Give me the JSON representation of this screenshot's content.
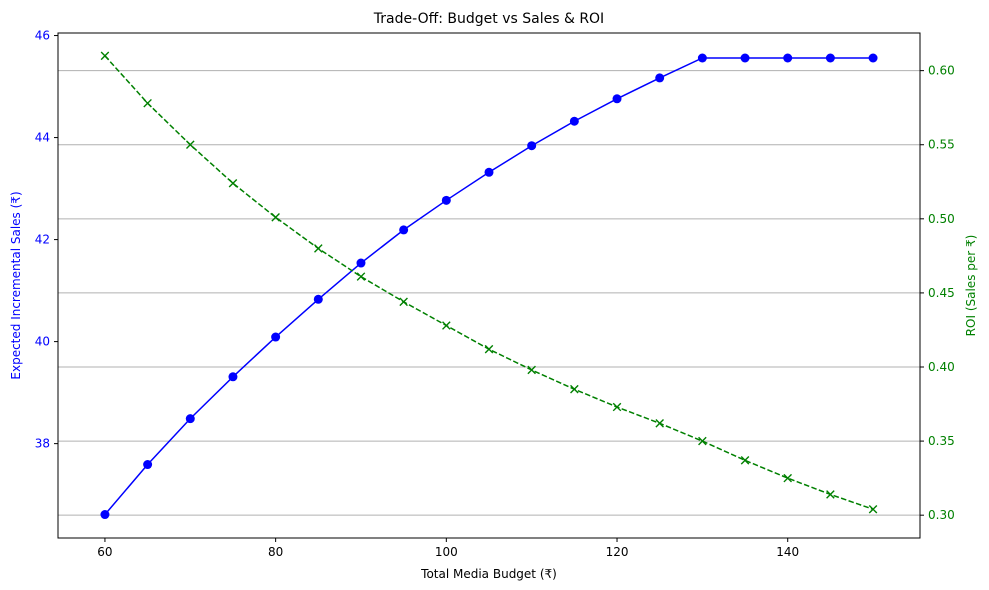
{
  "chart_data": {
    "type": "line",
    "title": "Trade-Off: Budget vs Sales & ROI",
    "xlabel": "Total Media Budget (₹)",
    "ylabel_left": "Expected Incremental Sales (₹)",
    "ylabel_right": "ROI (Sales per ₹)",
    "x": [
      60,
      65,
      70,
      75,
      80,
      85,
      90,
      95,
      100,
      105,
      110,
      115,
      120,
      125,
      130,
      135,
      140,
      145,
      150
    ],
    "xlim": [
      54.5,
      155.5
    ],
    "ylim_left": [
      36.15,
      46.05
    ],
    "ylim_right": [
      0.2846,
      0.6254
    ],
    "x_ticks": [
      60,
      80,
      100,
      120,
      140
    ],
    "y_left_ticks": [
      38,
      40,
      42,
      44,
      46
    ],
    "y_right_ticks": [
      0.3,
      0.35,
      0.4,
      0.45,
      0.5,
      0.55,
      0.6
    ],
    "grid": "horizontal, right axis",
    "series": [
      {
        "axis": "left",
        "color": "#0000ff",
        "marker": "circle",
        "linestyle": "solid",
        "values": [
          36.61,
          37.59,
          38.49,
          39.31,
          40.09,
          40.83,
          41.54,
          42.19,
          42.77,
          43.32,
          43.84,
          44.32,
          44.76,
          45.17,
          45.56,
          45.56,
          45.56,
          45.56,
          45.56
        ]
      },
      {
        "axis": "right",
        "color": "#008000",
        "marker": "x",
        "linestyle": "dashed",
        "values": [
          0.61,
          0.578,
          0.55,
          0.524,
          0.501,
          0.48,
          0.461,
          0.444,
          0.428,
          0.412,
          0.398,
          0.385,
          0.373,
          0.362,
          0.35,
          0.337,
          0.325,
          0.314,
          0.304
        ]
      }
    ]
  }
}
